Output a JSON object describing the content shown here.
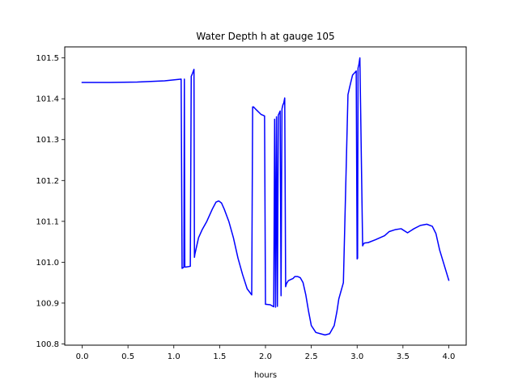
{
  "chart_data": {
    "type": "line",
    "title": "Water Depth h at gauge 105",
    "xlabel": "hours",
    "ylabel": "",
    "xlim": [
      -0.19,
      4.19
    ],
    "ylim": [
      100.797,
      101.527
    ],
    "xticks": [
      0.0,
      0.5,
      1.0,
      1.5,
      2.0,
      2.5,
      3.0,
      3.5,
      4.0
    ],
    "xtick_labels": [
      "0.0",
      "0.5",
      "1.0",
      "1.5",
      "2.0",
      "2.5",
      "3.0",
      "3.5",
      "4.0"
    ],
    "yticks": [
      100.8,
      100.9,
      101.0,
      101.1,
      101.2,
      101.3,
      101.4,
      101.5
    ],
    "ytick_labels": [
      "100.8",
      "100.9",
      "101.0",
      "101.1",
      "101.2",
      "101.3",
      "101.4",
      "101.5"
    ],
    "grid": false,
    "legend": "none",
    "series": [
      {
        "color": "#0000ff",
        "x": [
          0.0,
          0.3,
          0.6,
          0.9,
          1.08,
          1.09,
          1.11,
          1.115,
          1.12,
          1.125,
          1.18,
          1.19,
          1.2,
          1.22,
          1.225,
          1.23,
          1.27,
          1.31,
          1.36,
          1.42,
          1.46,
          1.49,
          1.52,
          1.55,
          1.6,
          1.65,
          1.7,
          1.75,
          1.8,
          1.85,
          1.86,
          1.87,
          1.9,
          1.95,
          1.97,
          1.99,
          2.0,
          2.01,
          2.05,
          2.09,
          2.1,
          2.11,
          2.12,
          2.13,
          2.14,
          2.15,
          2.16,
          2.17,
          2.18,
          2.19,
          2.2,
          2.21,
          2.22,
          2.23,
          2.25,
          2.28,
          2.3,
          2.32,
          2.35,
          2.38,
          2.41,
          2.44,
          2.47,
          2.5,
          2.55,
          2.6,
          2.65,
          2.7,
          2.75,
          2.78,
          2.8,
          2.85,
          2.9,
          2.91,
          2.92,
          2.95,
          2.99,
          3.0,
          3.005,
          3.01,
          3.02,
          3.03,
          3.06,
          3.07,
          3.08,
          3.12,
          3.2,
          3.3,
          3.35,
          3.42,
          3.48,
          3.55,
          3.62,
          3.69,
          3.76,
          3.82,
          3.86,
          3.9,
          4.0
        ],
        "y": [
          101.44,
          101.44,
          101.441,
          101.444,
          101.448,
          100.985,
          100.988,
          101.448,
          100.99,
          100.988,
          100.99,
          101.455,
          101.46,
          101.472,
          101.012,
          101.02,
          101.06,
          101.08,
          101.1,
          101.13,
          101.147,
          101.15,
          101.145,
          101.13,
          101.1,
          101.06,
          101.01,
          100.97,
          100.935,
          100.92,
          101.38,
          101.38,
          101.373,
          101.362,
          101.36,
          101.358,
          100.897,
          100.897,
          100.896,
          100.891,
          101.35,
          100.89,
          101.356,
          100.892,
          101.36,
          101.365,
          101.37,
          100.918,
          101.375,
          101.385,
          101.39,
          101.402,
          100.94,
          100.948,
          100.955,
          100.958,
          100.96,
          100.965,
          100.965,
          100.962,
          100.95,
          100.92,
          100.88,
          100.845,
          100.828,
          100.825,
          100.822,
          100.825,
          100.845,
          100.88,
          100.91,
          100.95,
          101.41,
          101.42,
          101.43,
          101.458,
          101.468,
          101.008,
          101.01,
          101.475,
          101.485,
          101.5,
          101.04,
          101.045,
          101.047,
          101.048,
          101.055,
          101.065,
          101.075,
          101.08,
          101.082,
          101.072,
          101.082,
          101.09,
          101.093,
          101.088,
          101.07,
          101.03,
          100.956
        ]
      }
    ]
  }
}
